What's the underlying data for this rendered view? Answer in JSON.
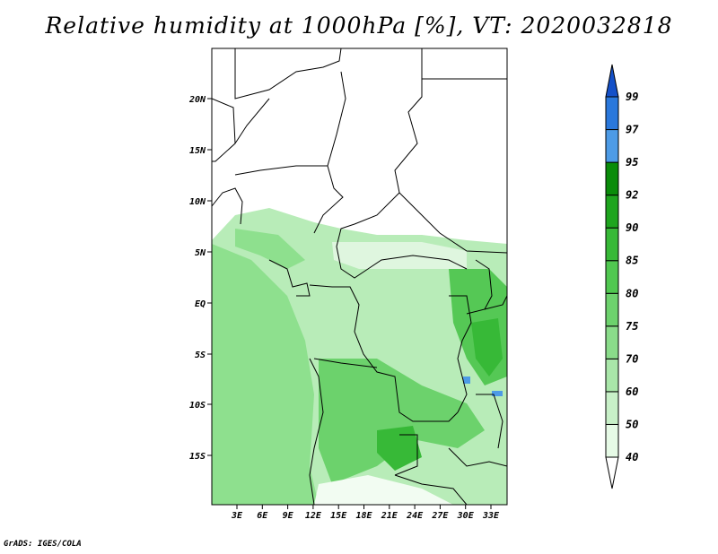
{
  "title": "Relative humidity at 1000hPa [%], VT: 2020032818",
  "footer": "GrADS: IGES/COLA",
  "map": {
    "lat_labels": [
      "20N",
      "15N",
      "10N",
      "5N",
      "EQ",
      "5S",
      "10S",
      "15S"
    ],
    "lon_labels": [
      "3E",
      "6E",
      "9E",
      "12E",
      "15E",
      "18E",
      "21E",
      "24E",
      "27E",
      "30E",
      "33E"
    ]
  },
  "colorbar": {
    "labels": [
      "40",
      "50",
      "60",
      "70",
      "75",
      "80",
      "85",
      "90",
      "92",
      "95",
      "97",
      "99"
    ],
    "colors": [
      "#ffffff",
      "#e6fae6",
      "#c8f0c8",
      "#a9e6a9",
      "#8adc8a",
      "#6dd26d",
      "#50c850",
      "#37b937",
      "#1ea51e",
      "#0a8c0a",
      "#4d9be6",
      "#2a78dc",
      "#1450c8"
    ]
  },
  "colors": {
    "land_outline": "#000000",
    "lake_blue": "#4d9be6"
  }
}
